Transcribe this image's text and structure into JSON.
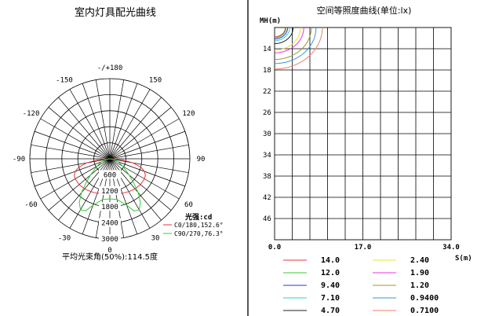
{
  "left_panel": {
    "title": "室内灯具配光曲线",
    "unit_label": "光强:cd",
    "beam_angle": "平均光束角(50%):114.5度"
  },
  "right_panel": {
    "title": "空间等照度曲线(单位:lx)"
  },
  "chart_data": [
    {
      "type": "polar",
      "title": "室内灯具配光曲线",
      "angle_labels": [
        "-/+180",
        "150",
        "120",
        "90",
        "60",
        "30",
        "0",
        "-30",
        "-60",
        "-90",
        "-120",
        "-150"
      ],
      "radial_labels": [
        "600",
        "1200",
        "1800",
        "2400",
        "3000"
      ],
      "radial_max": 3000,
      "unit": "光强:cd",
      "series": [
        {
          "name": "C0/180,152.6°",
          "color": "#e8323c",
          "angles": [
            -90,
            -85,
            -80,
            -75,
            -70,
            -65,
            -60,
            -50,
            -40,
            -30,
            -20,
            -10,
            0,
            10,
            20,
            30,
            40,
            50,
            60,
            65,
            70,
            75,
            80,
            85,
            90
          ],
          "values": [
            0,
            450,
            880,
            1200,
            1380,
            1470,
            1500,
            1500,
            1470,
            1420,
            1370,
            1330,
            1300,
            1330,
            1370,
            1420,
            1470,
            1500,
            1500,
            1470,
            1380,
            1200,
            880,
            450,
            0
          ]
        },
        {
          "name": "C90/270,76.3°",
          "color": "#33cc33",
          "angles": [
            -90,
            -80,
            -70,
            -60,
            -50,
            -45,
            -40,
            -35,
            -30,
            -25,
            -20,
            -10,
            0,
            10,
            20,
            25,
            30,
            35,
            40,
            45,
            50,
            60,
            70,
            80,
            90
          ],
          "values": [
            0,
            150,
            330,
            560,
            950,
            1250,
            1650,
            2000,
            2200,
            2150,
            1850,
            1550,
            1500,
            1550,
            1850,
            2150,
            2200,
            2000,
            1650,
            1250,
            950,
            560,
            330,
            150,
            0
          ]
        }
      ]
    },
    {
      "type": "contour",
      "title": "空间等照度曲线(单位:lx)",
      "xlabel": "S(m)",
      "ylabel": "MH(m)",
      "x_ticks": [
        "0.0",
        "17.0",
        "34.0"
      ],
      "y_ticks": [
        "14",
        "18",
        "22",
        "26",
        "30",
        "34",
        "38",
        "42",
        "46"
      ],
      "xlim": [
        0,
        34
      ],
      "ylim": [
        50,
        10
      ],
      "levels": [
        {
          "label": "14.0",
          "value": 14.0,
          "color": "#e8323c"
        },
        {
          "label": "12.0",
          "value": 12.0,
          "color": "#33cc33"
        },
        {
          "label": "9.40",
          "value": 9.4,
          "color": "#3333cc"
        },
        {
          "label": "7.10",
          "value": 7.1,
          "color": "#33cccc"
        },
        {
          "label": "4.70",
          "value": 4.7,
          "color": "#222222"
        },
        {
          "label": "2.40",
          "value": 2.4,
          "color": "#e6e633"
        },
        {
          "label": "1.90",
          "value": 1.9,
          "color": "#e633e6"
        },
        {
          "label": "1.20",
          "value": 1.2,
          "color": "#999933"
        },
        {
          "label": "0.9400",
          "value": 0.94,
          "color": "#3399dd"
        },
        {
          "label": "0.7100",
          "value": 0.71,
          "color": "#f0806a"
        }
      ]
    }
  ]
}
